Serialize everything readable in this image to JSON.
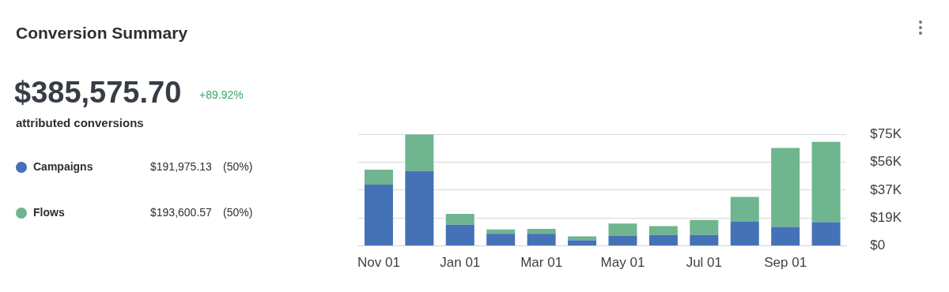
{
  "chart_data": {
    "type": "bar",
    "title": "Conversion Summary",
    "stacked": true,
    "grid": "y",
    "legend": "left",
    "categories": [
      "Nov 01",
      null,
      "Jan 01",
      null,
      "Mar 01",
      null,
      "May 01",
      null,
      "Jul 01",
      null,
      "Sep 01",
      null
    ],
    "ylim": [
      0,
      75
    ],
    "yticks": [
      {
        "value": 0,
        "label": "$0"
      },
      {
        "value": 18.75,
        "label": "$19K"
      },
      {
        "value": 37.5,
        "label": "$37K"
      },
      {
        "value": 56.25,
        "label": "$56K"
      },
      {
        "value": 75,
        "label": "$75K"
      }
    ],
    "series": [
      {
        "name": "Campaigns",
        "color": "#4571b7",
        "values": [
          41.2,
          50.3,
          14.2,
          8.2,
          8.2,
          3.7,
          6.9,
          7.3,
          7.3,
          16.5,
          12.8,
          16
        ]
      },
      {
        "name": "Flows",
        "color": "#6fb58f",
        "values": [
          10,
          24.7,
          7.3,
          2.8,
          3.2,
          2.7,
          8.2,
          6,
          10.1,
          16.4,
          53,
          54
        ]
      }
    ],
    "annotations": [
      "$385,575.70",
      "+89.92%",
      "attributed conversions",
      "$191,975.13",
      "(50%)",
      "$193,600.57",
      "(50%)"
    ]
  }
}
